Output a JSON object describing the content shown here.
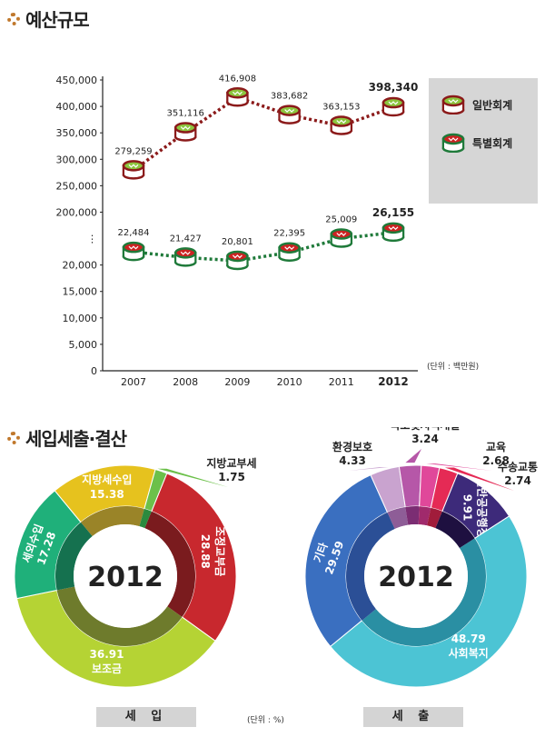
{
  "section1": {
    "title": "예산규모"
  },
  "section2": {
    "title": "세입세출·결산"
  },
  "chart_data": [
    {
      "type": "line",
      "x": [
        "2007",
        "2008",
        "2009",
        "2010",
        "2011",
        "2012"
      ],
      "x_highlight": "2012",
      "y_ticks": [
        "450,000",
        "400,000",
        "350,000",
        "300,000",
        "250,000",
        "200,000",
        "⋮",
        "20,000",
        "15,000",
        "10,000",
        "5,000",
        "0"
      ],
      "y_axis_break": {
        "upper_range": [
          200000,
          450000
        ],
        "lower_range": [
          0,
          20000
        ]
      },
      "series": [
        {
          "name": "일반회계",
          "values": [
            279259,
            351116,
            416908,
            383682,
            363153,
            398340
          ],
          "labels": [
            "279,259",
            "351,116",
            "416,908",
            "383,682",
            "363,153",
            "398,340"
          ],
          "color": "#8b1a1a",
          "icon_color": "#8cc63f"
        },
        {
          "name": "특별회계",
          "values": [
            22484,
            21427,
            20801,
            22395,
            25009,
            26155
          ],
          "labels": [
            "22,484",
            "21,427",
            "20,801",
            "22,395",
            "25,009",
            "26,155"
          ],
          "color": "#1f7a3a",
          "icon_color": "#cc2222"
        }
      ],
      "unit_note": "(단위 : 백만원)",
      "legend_position": "right"
    },
    {
      "type": "pie",
      "center_label": "2012",
      "caption": "세 입",
      "slices": [
        {
          "label": "조정교부금",
          "value": 28.88,
          "value_text": "28.88",
          "color": "#c8282e",
          "inner_color": "#7a1b1e"
        },
        {
          "label": "보조금",
          "value": 36.91,
          "value_text": "36.91",
          "color": "#b5d334",
          "inner_color": "#6e7b2c"
        },
        {
          "label": "세외수입",
          "value": 17.28,
          "value_text": "17.28",
          "color": "#1fb07a",
          "inner_color": "#15714f"
        },
        {
          "label": "지방세수입",
          "value": 15.38,
          "value_text": "15.38",
          "color": "#e6c21e",
          "inner_color": "#9a8428"
        },
        {
          "label": "지방교부세",
          "value": 1.75,
          "value_text": "1.75",
          "color": "#6cc04a",
          "inner_color": "#2b8a3e"
        }
      ]
    },
    {
      "type": "pie",
      "center_label": "2012",
      "caption": "세 출",
      "slices": [
        {
          "label": "일반공공행정",
          "value": 9.91,
          "value_text": "9.91",
          "color": "#3d2a7a",
          "inner_color": "#1e1040"
        },
        {
          "label": "사회복지",
          "value": 48.79,
          "value_text": "48.79",
          "color": "#4cc4d4",
          "inner_color": "#2a8fa3"
        },
        {
          "label": "기타",
          "value": 29.59,
          "value_text": "29.59",
          "color": "#3a6fc0",
          "inner_color": "#2b4f96"
        },
        {
          "label": "환경보호",
          "value": 4.33,
          "value_text": "4.33",
          "color": "#c9a3cf",
          "inner_color": "#8e5d97"
        },
        {
          "label": "국토및지역개발",
          "value": 3.24,
          "value_text": "3.24",
          "color": "#b657a8",
          "inner_color": "#7b2d73"
        },
        {
          "label": "교육",
          "value": 2.68,
          "value_text": "2.68",
          "color": "#e0489a",
          "inner_color": "#a02a6c"
        },
        {
          "label": "수송교통",
          "value": 2.74,
          "value_text": "2.74",
          "color": "#e52a55",
          "inner_color": "#a11c3b"
        }
      ]
    }
  ],
  "pie_unit_note": "(단위 : %)"
}
